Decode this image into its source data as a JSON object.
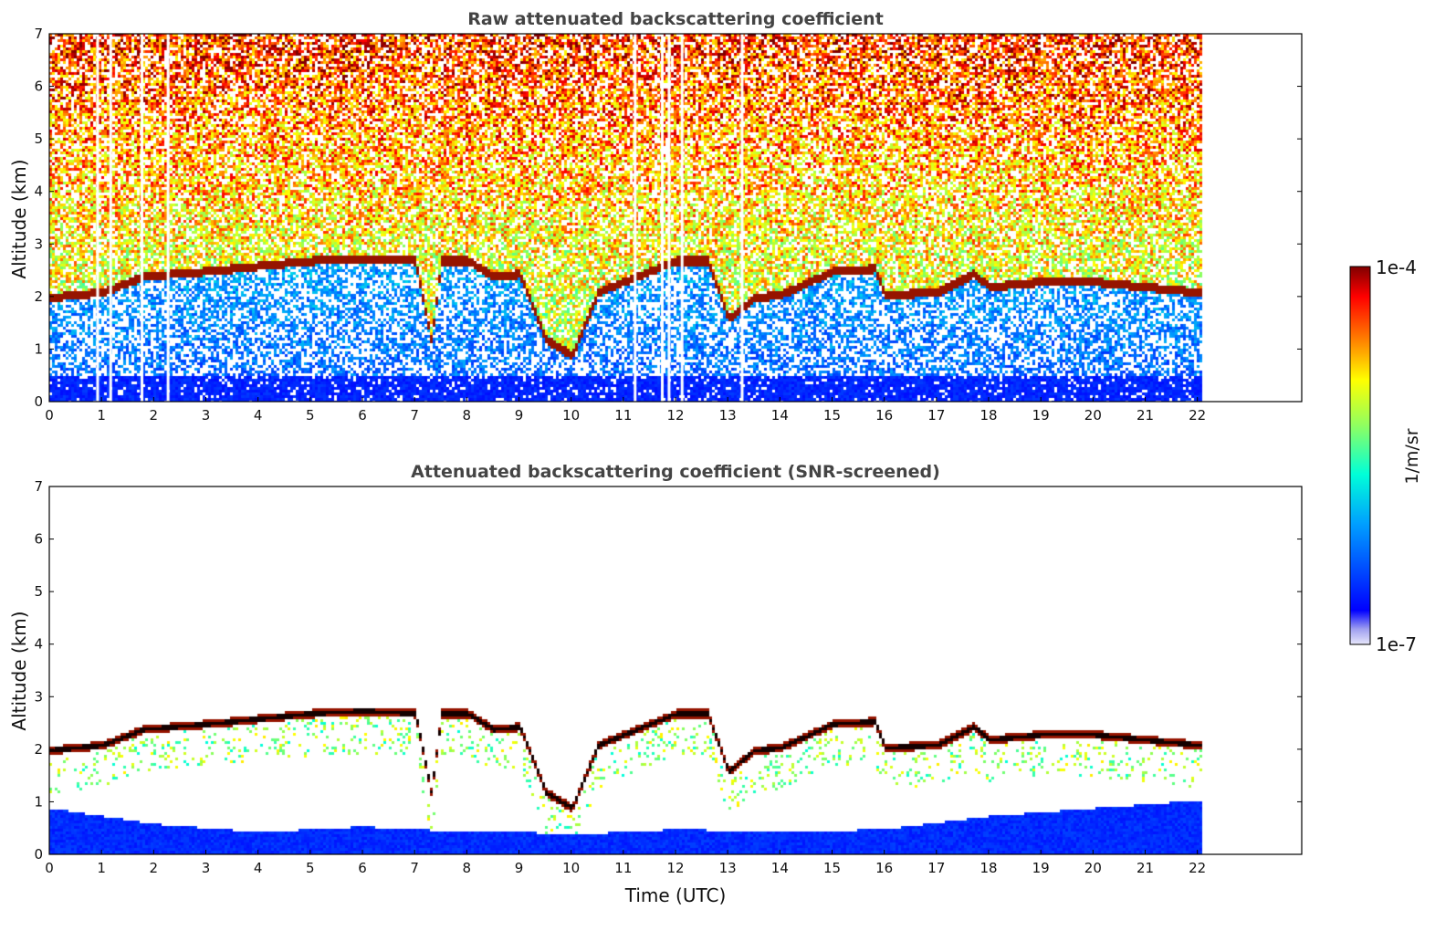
{
  "colorbar": {
    "min_label": "1e-7",
    "max_label": "1e-4",
    "unit_label": "1/m/sr",
    "colormap": "jet",
    "scale": "log"
  },
  "chart_data": [
    {
      "type": "heatmap",
      "title": "Raw attenuated backscattering coefficient",
      "xlabel": "",
      "ylabel": "Altitude (km)",
      "xlim": [
        0,
        24
      ],
      "ylim": [
        0,
        7
      ],
      "xticks": [
        "0",
        "1",
        "2",
        "3",
        "4",
        "5",
        "6",
        "7",
        "8",
        "9",
        "10",
        "11",
        "12",
        "13",
        "14",
        "15",
        "16",
        "17",
        "18",
        "19",
        "20",
        "21",
        "22"
      ],
      "yticks": [
        "0",
        "1",
        "2",
        "3",
        "4",
        "5",
        "6",
        "7"
      ],
      "data_extent_hours": [
        0,
        22.05
      ],
      "screened": false,
      "cloud_layer": {
        "time_utc": [
          0,
          1,
          1.8,
          3,
          4,
          5,
          6,
          7,
          7.3,
          7.5,
          8,
          8.5,
          9,
          9.5,
          10,
          10.5,
          11,
          12,
          12.6,
          13,
          13.5,
          14,
          15,
          15.8,
          16,
          17,
          17.7,
          18,
          19,
          20,
          21,
          22
        ],
        "altitude_km": [
          2.0,
          2.1,
          2.4,
          2.5,
          2.6,
          2.7,
          2.75,
          2.7,
          1.2,
          2.7,
          2.7,
          2.4,
          2.45,
          1.2,
          0.9,
          2.1,
          2.3,
          2.7,
          2.7,
          1.6,
          2.0,
          2.05,
          2.5,
          2.55,
          2.05,
          2.1,
          2.45,
          2.2,
          2.3,
          2.3,
          2.2,
          2.1
        ]
      },
      "data_gaps_hours": [
        0.9,
        1.15,
        1.75,
        2.25,
        11.2,
        11.72,
        11.85,
        12.1,
        13.25
      ]
    },
    {
      "type": "heatmap",
      "title": "Attenuated backscattering coefficient (SNR-screened)",
      "xlabel": "Time (UTC)",
      "ylabel": "Altitude (km)",
      "xlim": [
        0,
        24
      ],
      "ylim": [
        0,
        7
      ],
      "xticks": [
        "0",
        "1",
        "2",
        "3",
        "4",
        "5",
        "6",
        "7",
        "8",
        "9",
        "10",
        "11",
        "12",
        "13",
        "14",
        "15",
        "16",
        "17",
        "18",
        "19",
        "20",
        "21",
        "22"
      ],
      "yticks": [
        "0",
        "1",
        "2",
        "3",
        "4",
        "5",
        "6",
        "7"
      ],
      "data_extent_hours": [
        0,
        22.05
      ],
      "screened": true,
      "boundary_layer_top_km": {
        "time_utc": [
          0,
          2,
          4,
          6,
          8,
          9,
          10,
          12,
          14,
          16,
          18,
          20,
          22
        ],
        "altitude_km": [
          0.9,
          0.6,
          0.45,
          0.55,
          0.45,
          0.45,
          0.4,
          0.5,
          0.45,
          0.5,
          0.75,
          0.9,
          1.05
        ]
      }
    }
  ]
}
